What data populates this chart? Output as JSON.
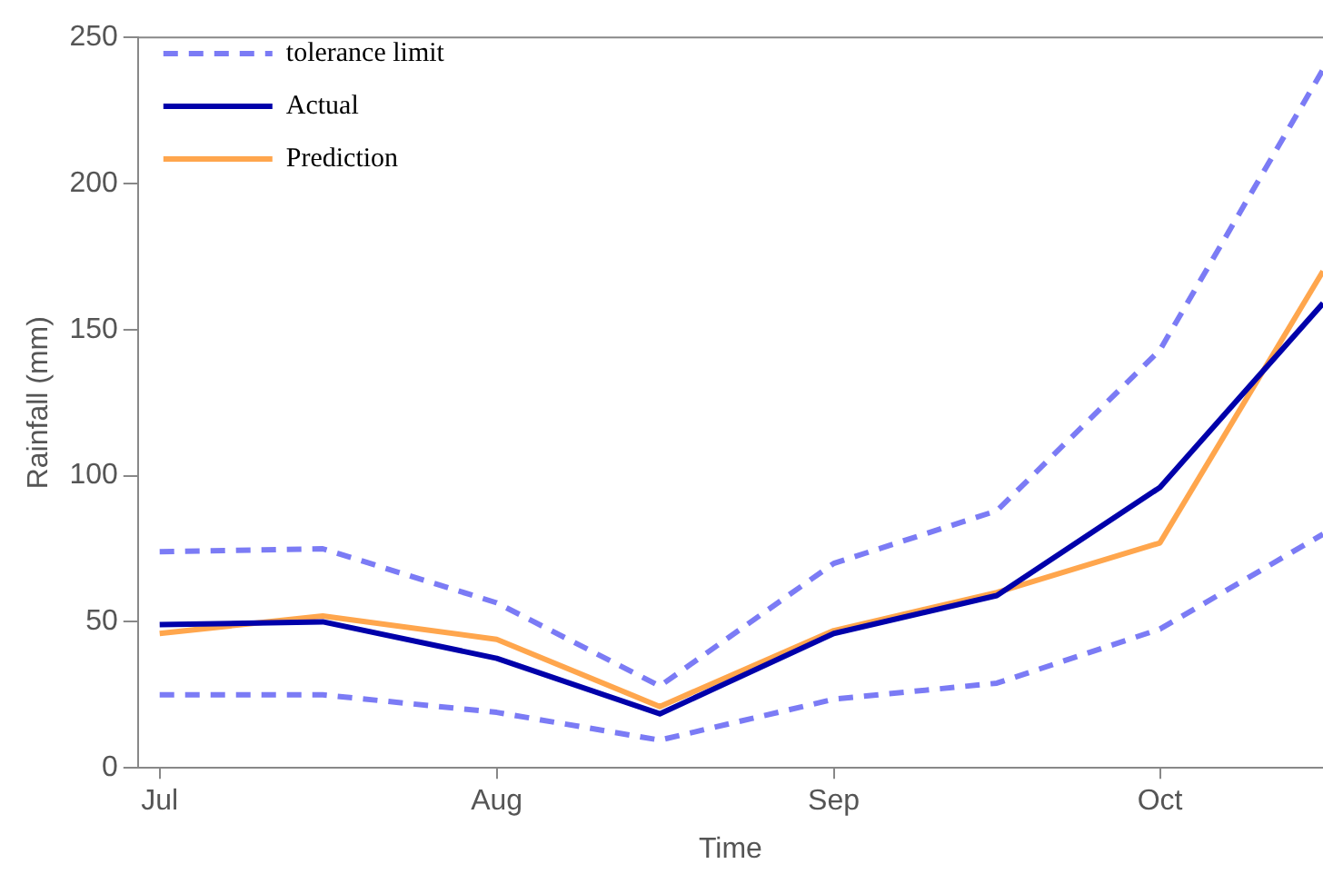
{
  "chart_data": {
    "type": "line",
    "xlabel": "Time",
    "ylabel": "Rainfall (mm)",
    "x": [
      "--07-01",
      "--07-16",
      "--08-01",
      "--08-16",
      "--09-01",
      "--09-16",
      "--10-01",
      "--10-16"
    ],
    "series": [
      {
        "name": "tolerance limit",
        "color": "#7b7bf5",
        "line_style": "dashed",
        "values": [
          74,
          75,
          56.5,
          28,
          70,
          88,
          143,
          239
        ]
      },
      {
        "name": "Actual",
        "color": "#0000aa",
        "line_style": "solid",
        "values": [
          49,
          50,
          37.5,
          18.5,
          46,
          59,
          96,
          159
        ]
      },
      {
        "name": "Prediction",
        "color": "#ffa64d",
        "line_style": "solid",
        "values": [
          46,
          52,
          44,
          21,
          47,
          60,
          77,
          170
        ]
      },
      {
        "color": "#7b7bf5",
        "line_style": "dashed",
        "values": [
          25,
          25,
          19,
          9.5,
          23.5,
          29,
          47.5,
          80
        ]
      }
    ],
    "xlim": [
      "--06-29",
      "--10-16"
    ],
    "xticks": [
      {
        "value": "--07-01",
        "label": "Jul"
      },
      {
        "value": "--08-01",
        "label": "Aug"
      },
      {
        "value": "--09-01",
        "label": "Sep"
      },
      {
        "value": "--10-01",
        "label": "Oct"
      }
    ],
    "ylim": [
      0,
      250
    ],
    "yticks": [
      0,
      50,
      100,
      150,
      200,
      250
    ],
    "grid": false,
    "legend": "top left",
    "marker": "none"
  }
}
